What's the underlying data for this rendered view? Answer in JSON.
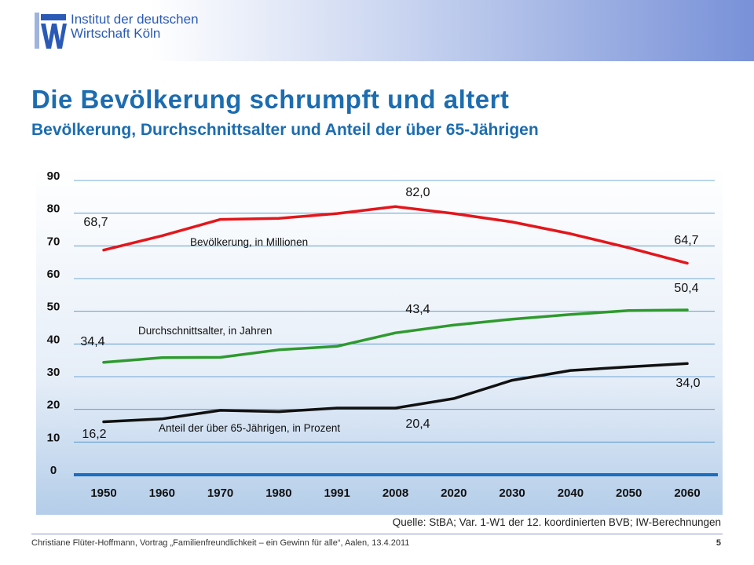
{
  "header": {
    "logo_line1": "Institut der deutschen",
    "logo_line2": "Wirtschaft Köln"
  },
  "slide": {
    "title": "Die Bevölkerung schrumpft und altert",
    "subtitle": "Bevölkerung, Durchschnittsalter und Anteil der über 65-Jährigen",
    "source": "Quelle: StBA; Var. 1-W1 der 12. koordinierten BVB; IW-Berechnungen",
    "footer": "Christiane Flüter-Hoffmann, Vortrag „Familienfreundlichkeit – ein Gewinn für alle“, Aalen, 13.4.2011",
    "page_number": "5"
  },
  "chart_data": {
    "type": "line",
    "categories": [
      "1950",
      "1960",
      "1970",
      "1980",
      "1991",
      "2008",
      "2020",
      "2030",
      "2040",
      "2050",
      "2060"
    ],
    "ylim": [
      0,
      90
    ],
    "yticks": [
      "0",
      "10",
      "20",
      "30",
      "40",
      "50",
      "60",
      "70",
      "80",
      "90"
    ],
    "grid": true,
    "series": [
      {
        "name": "Bevölkerung, in Millionen",
        "color": "#e3161b",
        "values": [
          68.7,
          73.1,
          78.1,
          78.4,
          79.9,
          82.0,
          79.9,
          77.3,
          73.7,
          69.4,
          64.7
        ]
      },
      {
        "name": "Durchschnittsalter, in Jahren",
        "color": "#2e9a2e",
        "values": [
          34.4,
          35.8,
          35.9,
          38.2,
          39.3,
          43.4,
          45.8,
          47.6,
          49.0,
          50.2,
          50.4
        ]
      },
      {
        "name": "Anteil der über 65-Jährigen, in Prozent",
        "color": "#111111",
        "values": [
          16.2,
          17.1,
          19.7,
          19.3,
          20.4,
          20.4,
          23.3,
          28.9,
          31.9,
          33.0,
          34.0
        ]
      }
    ],
    "data_labels": [
      "68,7",
      "82,0",
      "64,7",
      "34,4",
      "43,4",
      "50,4",
      "16,2",
      "20,4",
      "34,0"
    ]
  }
}
